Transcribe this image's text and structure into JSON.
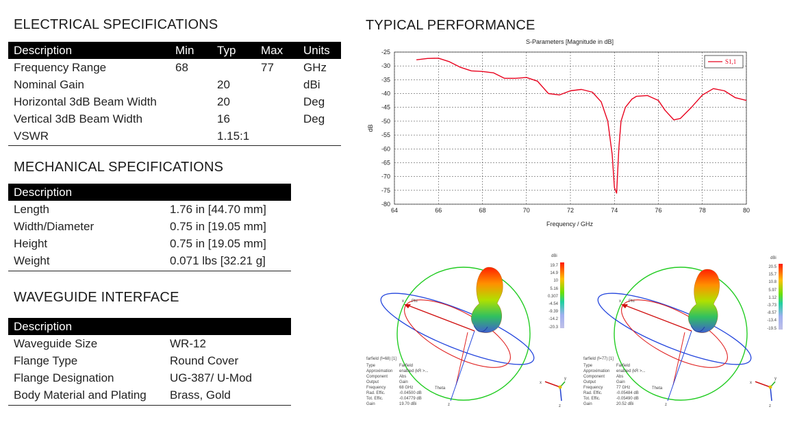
{
  "electrical": {
    "title": "ELECTRICAL SPECIFICATIONS",
    "headers": [
      "Description",
      "Min",
      "Typ",
      "Max",
      "Units"
    ],
    "rows": [
      [
        "Frequency Range",
        "68",
        "",
        "77",
        "GHz"
      ],
      [
        "Nominal Gain",
        "",
        "20",
        "",
        "dBi"
      ],
      [
        "Horizontal 3dB Beam Width",
        "",
        "20",
        "",
        "Deg"
      ],
      [
        "Vertical 3dB Beam Width",
        "",
        "16",
        "",
        "Deg"
      ],
      [
        "VSWR",
        "",
        "1.15:1",
        "",
        ""
      ]
    ]
  },
  "mechanical": {
    "title": "MECHANICAL SPECIFICATIONS",
    "header": "Description",
    "rows": [
      [
        "Length",
        "1.76 in [44.70 mm]"
      ],
      [
        "Width/Diameter",
        "0.75 in [19.05 mm]"
      ],
      [
        "Height",
        "0.75 in [19.05 mm]"
      ],
      [
        "Weight",
        "0.071 lbs [32.21 g]"
      ]
    ]
  },
  "waveguide": {
    "title": "WAVEGUIDE INTERFACE",
    "header": "Description",
    "rows": [
      [
        "Waveguide Size",
        "WR-12"
      ],
      [
        "Flange Type",
        "Round Cover"
      ],
      [
        "Flange Designation",
        "UG-387/ U-Mod"
      ],
      [
        "Body Material and Plating",
        "Brass, Gold"
      ]
    ]
  },
  "performance": {
    "title": "TYPICAL PERFORMANCE"
  },
  "chart_data": {
    "type": "line",
    "title": "S-Parameters [Magnitude in dB]",
    "xlabel": "Frequency / GHz",
    "ylabel": "dB",
    "xlim": [
      64,
      80
    ],
    "ylim": [
      -80,
      -25
    ],
    "xticks": [
      64,
      66,
      68,
      70,
      72,
      74,
      76,
      78,
      80
    ],
    "yticks": [
      -25,
      -30,
      -35,
      -40,
      -45,
      -50,
      -55,
      -60,
      -65,
      -70,
      -75,
      -80
    ],
    "grid": true,
    "legend": "top-right",
    "series": [
      {
        "name": "S1,1",
        "color": "#e8001c",
        "x": [
          65,
          65.5,
          66,
          66.5,
          67,
          67.5,
          68,
          68.5,
          69,
          69.5,
          70,
          70.5,
          71,
          71.5,
          72,
          72.5,
          73,
          73.4,
          73.7,
          73.9,
          74.0,
          74.1,
          74.2,
          74.3,
          74.5,
          74.8,
          75,
          75.5,
          76,
          76.3,
          76.7,
          77,
          77.5,
          78,
          78.5,
          79,
          79.5,
          80
        ],
        "y": [
          -27.8,
          -27.3,
          -27.2,
          -28.5,
          -30.5,
          -31.8,
          -32,
          -32.5,
          -34.5,
          -34.5,
          -34.2,
          -35.5,
          -40,
          -40.5,
          -39,
          -38.5,
          -39.5,
          -43,
          -50,
          -62,
          -74,
          -76,
          -60,
          -50,
          -45,
          -42,
          -41,
          -40.7,
          -42.5,
          -46,
          -49.5,
          -49,
          -45,
          -40.5,
          -38.2,
          -39,
          -41.5,
          -42.5
        ]
      }
    ]
  },
  "farfields": [
    {
      "colorbar_title": "dBi",
      "colorbar_ticks": [
        "19.7",
        "14.9",
        "10",
        "5.16",
        "0.307",
        "-4.54",
        "-9.39",
        "-14.2",
        "-20.3"
      ],
      "info_title": "farfield (f=68) [1]",
      "info_rows": [
        [
          "Type",
          "Farfield"
        ],
        [
          "Approximation",
          "enabled (kR >..."
        ],
        [
          "Component",
          "Abs"
        ],
        [
          "Output",
          "Gain"
        ],
        [
          "Frequency",
          "68 GHz"
        ],
        [
          "Rad. Effic.",
          "-0.04500 dB"
        ],
        [
          "Tot. Effic.",
          "-0.04779 dB"
        ],
        [
          "Gain",
          "19.70 dBi"
        ]
      ],
      "axis_labels": {
        "x": "x",
        "phi": "Phi",
        "theta": "Theta",
        "z": "z",
        "y": "y"
      }
    },
    {
      "colorbar_title": "dBi",
      "colorbar_ticks": [
        "20.5",
        "15.7",
        "10.8",
        "5.97",
        "1.12",
        "-3.73",
        "-8.57",
        "-13.4",
        "-19.5"
      ],
      "info_title": "farfield (f=77) [1]",
      "info_rows": [
        [
          "Type",
          "Farfield"
        ],
        [
          "Approximation",
          "enabled (kR >..."
        ],
        [
          "Component",
          "Abs"
        ],
        [
          "Output",
          "Gain"
        ],
        [
          "Frequency",
          "77 GHz"
        ],
        [
          "Rad. Effic.",
          "-0.05484 dB"
        ],
        [
          "Tot. Effic.",
          "-0.05490 dB"
        ],
        [
          "Gain",
          "20.52 dBi"
        ]
      ],
      "axis_labels": {
        "x": "x",
        "phi": "Phi",
        "theta": "Theta",
        "z": "z",
        "y": "y"
      }
    }
  ]
}
